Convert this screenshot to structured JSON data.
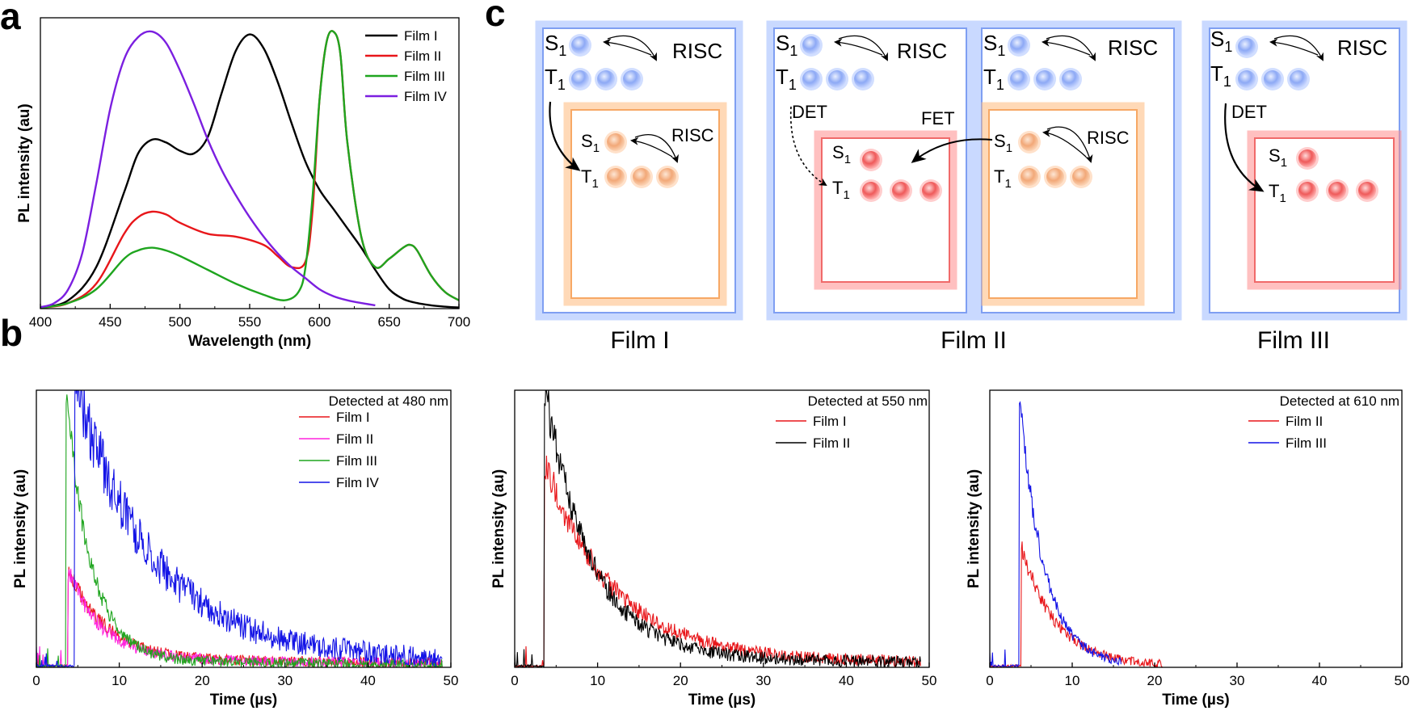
{
  "panels": {
    "a": {
      "letter": "a"
    },
    "b": {
      "letter": "b"
    },
    "c": {
      "letter": "c"
    }
  },
  "colors": {
    "film1": "#000000",
    "film2": "#e8161a",
    "film3": "#1fa51f",
    "film4": "#7b1fe0",
    "magenta": "#ff22dd",
    "blue": "#1414e6",
    "blueBox": "#8fb0ff",
    "orangeBox": "#ffb56a",
    "redBox": "#ff7b7b",
    "blueDot": "#7f9ff2",
    "orangeDot": "#f5ad7a",
    "redDot": "#f05a5a"
  },
  "chart_data": [
    {
      "id": "a",
      "type": "line",
      "title": "",
      "xlabel": "Wavelength (nm)",
      "ylabel": "PL intensity (au)",
      "xlim": [
        400,
        700
      ],
      "ylim": [
        0,
        1.05
      ],
      "xticks": [
        400,
        450,
        500,
        550,
        600,
        650,
        700
      ],
      "legend": [
        "Film I",
        "Film II",
        "Film III",
        "Film IV"
      ],
      "series": [
        {
          "name": "Film I",
          "color": "film1",
          "x": [
            400,
            420,
            440,
            460,
            470,
            480,
            490,
            500,
            510,
            520,
            530,
            540,
            550,
            560,
            570,
            580,
            590,
            600,
            610,
            620,
            630,
            640,
            650,
            660,
            670,
            680,
            690,
            700
          ],
          "y": [
            0.005,
            0.03,
            0.15,
            0.42,
            0.56,
            0.61,
            0.6,
            0.57,
            0.56,
            0.62,
            0.78,
            0.93,
            0.99,
            0.94,
            0.82,
            0.67,
            0.53,
            0.43,
            0.36,
            0.29,
            0.22,
            0.14,
            0.07,
            0.035,
            0.02,
            0.012,
            0.007,
            0.004
          ]
        },
        {
          "name": "Film II",
          "color": "film2",
          "x": [
            400,
            420,
            440,
            460,
            470,
            480,
            490,
            500,
            520,
            540,
            560,
            570,
            580,
            590,
            595,
            600,
            605,
            610,
            615,
            620,
            630,
            640,
            650,
            660,
            665,
            670,
            680,
            690,
            700
          ],
          "y": [
            0.003,
            0.02,
            0.09,
            0.27,
            0.33,
            0.35,
            0.34,
            0.31,
            0.27,
            0.26,
            0.23,
            0.19,
            0.15,
            0.17,
            0.35,
            0.75,
            0.96,
            1.0,
            0.92,
            0.6,
            0.26,
            0.15,
            0.18,
            0.22,
            0.23,
            0.21,
            0.12,
            0.06,
            0.03
          ]
        },
        {
          "name": "Film III",
          "color": "film3",
          "x": [
            400,
            420,
            440,
            460,
            470,
            480,
            490,
            500,
            520,
            540,
            560,
            575,
            585,
            590,
            595,
            600,
            605,
            610,
            615,
            620,
            630,
            640,
            650,
            660,
            665,
            670,
            680,
            690,
            700
          ],
          "y": [
            0.003,
            0.02,
            0.07,
            0.18,
            0.21,
            0.22,
            0.21,
            0.19,
            0.14,
            0.09,
            0.05,
            0.03,
            0.06,
            0.15,
            0.4,
            0.75,
            0.96,
            1.0,
            0.92,
            0.6,
            0.26,
            0.15,
            0.18,
            0.22,
            0.23,
            0.21,
            0.12,
            0.06,
            0.03
          ]
        },
        {
          "name": "Film IV",
          "color": "film4",
          "x": [
            400,
            410,
            420,
            430,
            440,
            450,
            460,
            470,
            480,
            490,
            500,
            510,
            520,
            530,
            540,
            550,
            560,
            570,
            580,
            590,
            600,
            610,
            620,
            630,
            640
          ],
          "y": [
            0.005,
            0.02,
            0.07,
            0.2,
            0.45,
            0.72,
            0.9,
            0.98,
            1.0,
            0.96,
            0.86,
            0.74,
            0.61,
            0.5,
            0.41,
            0.33,
            0.26,
            0.2,
            0.15,
            0.11,
            0.07,
            0.045,
            0.03,
            0.02,
            0.012
          ]
        }
      ]
    },
    {
      "id": "b1",
      "type": "line",
      "xlabel": "Time (µs)",
      "ylabel": "PL intensity (au)",
      "xlim": [
        0,
        50
      ],
      "ylim": [
        0,
        1.05
      ],
      "xticks": [
        0,
        10,
        20,
        30,
        40,
        50
      ],
      "annotation": "Detected at 480 nm",
      "legend": [
        "Film I",
        "Film II",
        "Film III",
        "Film IV"
      ],
      "series": [
        {
          "name": "Film I",
          "color": "film2",
          "t0": 3.8,
          "peak": 0.33,
          "tau": 4.5,
          "noise": 0.06,
          "tail": 0.03
        },
        {
          "name": "Film II",
          "color": "magenta",
          "t0": 3.8,
          "peak": 0.33,
          "tau": 4.0,
          "noise": 0.06,
          "tail": 0.03
        },
        {
          "name": "Film III",
          "color": "film3",
          "t0": 3.6,
          "peak": 1.0,
          "tau": 3.0,
          "noise": 0.06,
          "tail": 0.02
        },
        {
          "name": "Film IV",
          "color": "blue",
          "t0": 4.6,
          "peak": 1.0,
          "tau": 9.0,
          "noise": 0.12,
          "tail": 0.06
        }
      ]
    },
    {
      "id": "b2",
      "type": "line",
      "xlabel": "Time (µs)",
      "ylabel": "PL intensity (au)",
      "xlim": [
        0,
        50
      ],
      "ylim": [
        0,
        1.05
      ],
      "xticks": [
        0,
        10,
        20,
        30,
        40,
        50
      ],
      "annotation": "Detected at 550 nm",
      "legend": [
        "Film I",
        "Film II"
      ],
      "series": [
        {
          "name": "Film I",
          "color": "film2",
          "t0": 3.6,
          "peak": 0.72,
          "tau": 8.0,
          "noise": 0.07,
          "tail": 0.04
        },
        {
          "name": "Film II",
          "color": "film1",
          "t0": 3.6,
          "peak": 1.0,
          "tau": 5.5,
          "noise": 0.07,
          "tail": 0.04
        }
      ]
    },
    {
      "id": "b3",
      "type": "line",
      "xlabel": "Time (µs)",
      "ylabel": "PL intensity (au)",
      "xlim": [
        0,
        50
      ],
      "ylim": [
        0,
        1.05
      ],
      "xticks": [
        0,
        10,
        20,
        30,
        40,
        50
      ],
      "annotation": "Detected at 610 nm",
      "legend": [
        "Film II",
        "Film III"
      ],
      "series": [
        {
          "name": "Film II",
          "color": "film2",
          "t0": 3.8,
          "peak": 0.45,
          "tau": 4.2,
          "noise": 0.05,
          "tail": 0.0,
          "end": 21
        },
        {
          "name": "Film III",
          "color": "blue",
          "t0": 3.6,
          "peak": 1.0,
          "tau": 3.0,
          "noise": 0.05,
          "tail": 0.0,
          "end": 16
        }
      ]
    }
  ],
  "schematic": {
    "S1": "S",
    "T1": "T",
    "sub": "1",
    "RISC": "RISC",
    "DET": "DET",
    "FET": "FET",
    "captions": [
      "Film I",
      "Film II",
      "Film III"
    ]
  }
}
